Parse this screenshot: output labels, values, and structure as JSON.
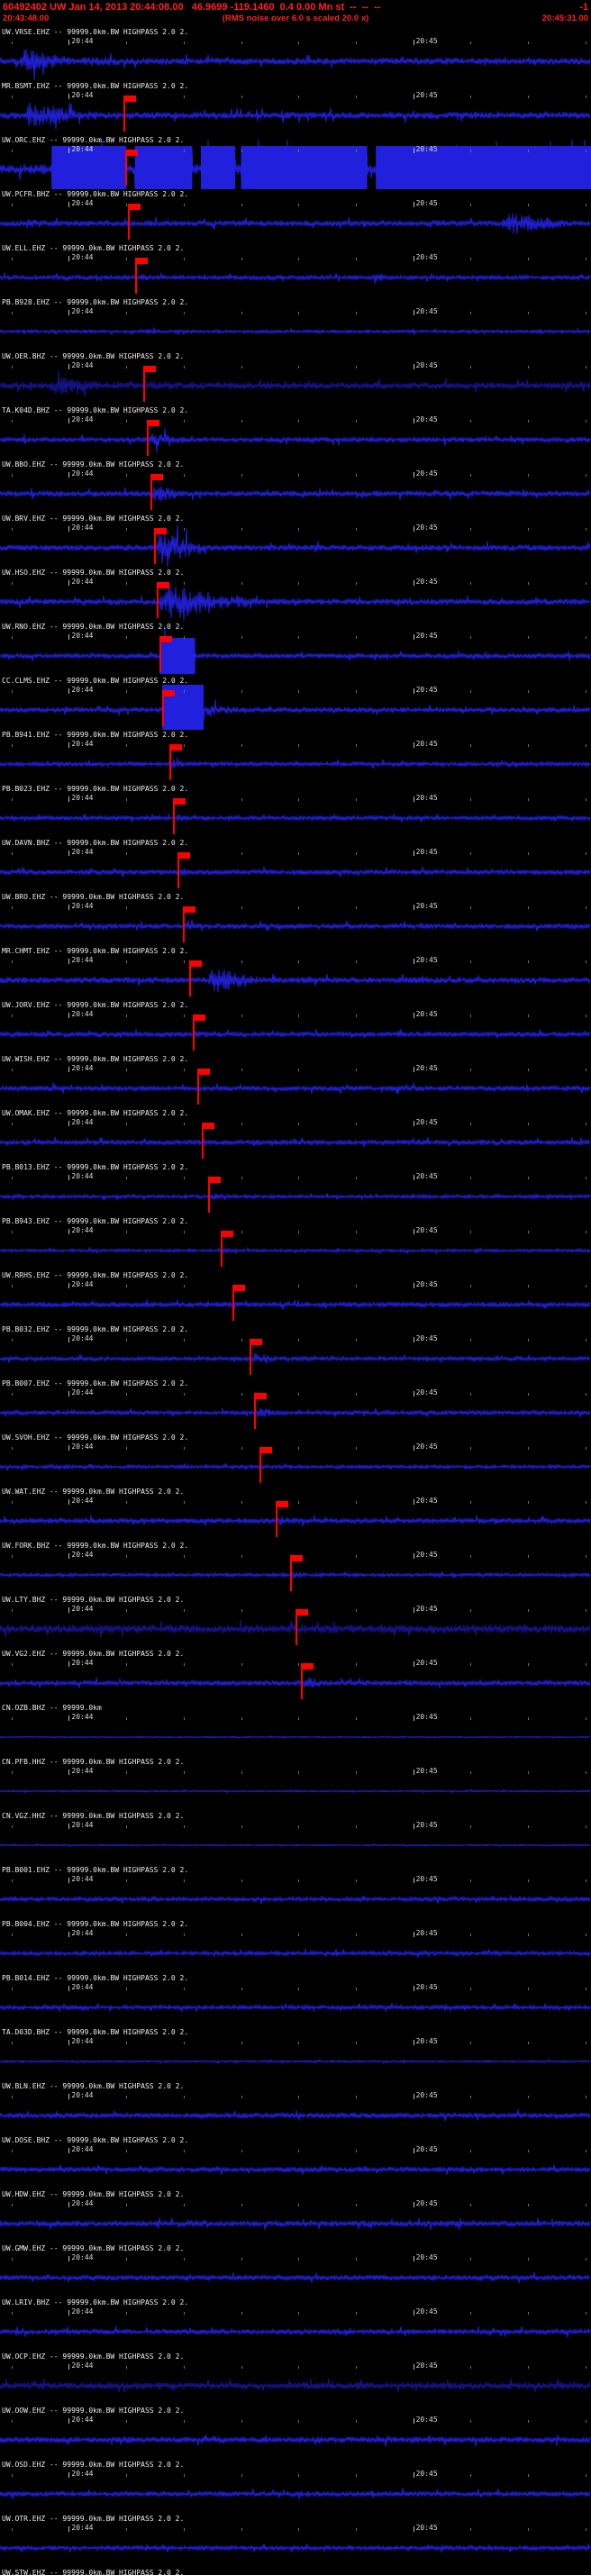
{
  "header": {
    "line1": "60492402 UW Jan 14, 2013 20:44:08.00   46.9699 -119.1460  0.4 0.00 Mn st  --  --  --",
    "line1_right": "-1",
    "start_time": "20:43:48.00",
    "rms_note": "(RMS noise over 6.0 s scaled 20.0 x)",
    "end_time": "20:45:31.00"
  },
  "timeline": {
    "window_seconds": 103,
    "minor_tick_start_s": 2,
    "minor_tick_interval_s": 10,
    "ticks": [
      {
        "s": 12,
        "label": "20:44"
      },
      {
        "s": 72,
        "label": "20:45"
      }
    ]
  },
  "colors": {
    "background": "#000000",
    "trace": "#2121dd",
    "trace_dark": "#15158f",
    "pick": "#ff0000",
    "label": "#ececec",
    "header_text": "#ff2222"
  },
  "traces": [
    {
      "label": "UW.VRSE.EHZ -- 99999.0km.BW HIGHPASS 2.0 2.",
      "base": 4,
      "bursts": [
        {
          "s0": 3,
          "s1": 13,
          "amp": 14
        },
        {
          "s0": 13,
          "s1": 30,
          "amp": 6
        }
      ],
      "blocks": [],
      "pick_s": null,
      "dark": false
    },
    {
      "label": "MR.BSMT.EHZ -- 99999.0km.BW HIGHPASS 2.0 2.",
      "base": 4,
      "bursts": [
        {
          "s0": 4,
          "s1": 14,
          "amp": 16
        },
        {
          "s0": 14,
          "s1": 24,
          "amp": 6
        }
      ],
      "blocks": [],
      "pick_s": 21.5,
      "dark": false
    },
    {
      "label": "UW.ORC.EHZ -- 99999.0km.BW HIGHPASS 2.0 2.",
      "base": 6,
      "bursts": [],
      "blocks": [
        {
          "s0": 9,
          "s1": 22,
          "half": 26
        },
        {
          "s0": 23.5,
          "s1": 33.5,
          "half": 26
        },
        {
          "s0": 35,
          "s1": 41,
          "half": 26
        },
        {
          "s0": 42,
          "s1": 64,
          "half": 26
        },
        {
          "s0": 65.5,
          "s1": 103,
          "half": 26
        }
      ],
      "pick_s": 21.8,
      "dark": false
    },
    {
      "label": "UW.PCFR.BHZ -- 99999.0km.BW HIGHPASS 2.0 2.",
      "base": 3.5,
      "bursts": [
        {
          "s0": 4,
          "s1": 9,
          "amp": 7
        },
        {
          "s0": 74,
          "s1": 80,
          "amp": 5
        },
        {
          "s0": 87,
          "s1": 99,
          "amp": 13
        }
      ],
      "blocks": [],
      "pick_s": 22.3,
      "dark": false
    },
    {
      "label": "UW.ELL.EHZ -- 99999.0km.BW HIGHPASS 2.0 2.",
      "base": 2.5,
      "bursts": [
        {
          "s0": 23.5,
          "s1": 30,
          "amp": 4
        },
        {
          "s0": 65,
          "s1": 67,
          "amp": 9
        }
      ],
      "blocks": [],
      "pick_s": 23.5,
      "dark": false
    },
    {
      "label": "PB.B928.EHZ -- 99999.0km.BW HIGHPASS 2.0 2.",
      "base": 1.8,
      "bursts": [
        {
          "s0": 25,
          "s1": 31,
          "amp": 3
        }
      ],
      "blocks": [],
      "pick_s": null,
      "dark": false
    },
    {
      "label": "UW.OER.BHZ -- 99999.0km.BW HIGHPASS 2.0 2.",
      "base": 4,
      "bursts": [
        {
          "s0": 8,
          "s1": 20,
          "amp": 11
        },
        {
          "s0": 25,
          "s1": 36,
          "amp": 6
        }
      ],
      "blocks": [],
      "pick_s": 25.0,
      "dark": true
    },
    {
      "label": "TA.K04D.BHZ -- 99999.0km.BW HIGHPASS 2.0 2.",
      "base": 3,
      "bursts": [
        {
          "s0": 25.6,
          "s1": 34,
          "amp": 8
        }
      ],
      "blocks": [],
      "pick_s": 25.6,
      "dark": false
    },
    {
      "label": "UW.BBO.EHZ -- 99999.0km.BW HIGHPASS 2.0 2.",
      "base": 3.5,
      "bursts": [
        {
          "s0": 26.2,
          "s1": 33,
          "amp": 10
        }
      ],
      "blocks": [],
      "pick_s": 26.2,
      "dark": false
    },
    {
      "label": "UW.BRV.EHZ -- 99999.0km.BW HIGHPASS 2.0 2.",
      "base": 3.5,
      "bursts": [
        {
          "s0": 26.8,
          "s1": 36,
          "amp": 18
        }
      ],
      "blocks": [],
      "pick_s": 26.8,
      "dark": false
    },
    {
      "label": "UW.HSO.EHZ -- 99999.0km.BW HIGHPASS 2.0 2.",
      "base": 3.5,
      "bursts": [
        {
          "s0": 27.3,
          "s1": 40,
          "amp": 22
        },
        {
          "s0": 40,
          "s1": 47,
          "amp": 8
        }
      ],
      "blocks": [],
      "pick_s": 27.3,
      "dark": false
    },
    {
      "label": "UW.RNO.EHZ -- 99999.0km.BW HIGHPASS 2.0 2.",
      "base": 3,
      "bursts": [],
      "blocks": [
        {
          "s0": 27.8,
          "s1": 34,
          "half": 20
        }
      ],
      "pick_s": 27.8,
      "dark": false
    },
    {
      "label": "CC.CLMS.EHZ -- 99999.0km.BW HIGHPASS 2.0 2.",
      "base": 3,
      "bursts": [
        {
          "s0": 35.5,
          "s1": 42,
          "amp": 8
        }
      ],
      "blocks": [
        {
          "s0": 28.3,
          "s1": 35.5,
          "half": 28
        }
      ],
      "pick_s": 28.3,
      "dark": false
    },
    {
      "label": "PB.B941.EHZ -- 99999.0km.BW HIGHPASS 2.0 2.",
      "base": 2.5,
      "bursts": [
        {
          "s0": 29.5,
          "s1": 33,
          "amp": 6
        }
      ],
      "blocks": [],
      "pick_s": 29.5,
      "dark": false
    },
    {
      "label": "PB.B023.EHZ -- 99999.0km.BW HIGHPASS 2.0 2.",
      "base": 2.5,
      "bursts": [
        {
          "s0": 30.2,
          "s1": 34,
          "amp": 5
        }
      ],
      "blocks": [],
      "pick_s": 30.2,
      "dark": false
    },
    {
      "label": "UW.DAVN.BHZ -- 99999.0km.BW HIGHPASS 2.0 2.",
      "base": 3,
      "bursts": [
        {
          "s0": 31,
          "s1": 35,
          "amp": 5
        }
      ],
      "blocks": [],
      "pick_s": 31.0,
      "dark": false
    },
    {
      "label": "UW.BRO.EHZ -- 99999.0km.BW HIGHPASS 2.0 2.",
      "base": 3,
      "bursts": [
        {
          "s0": 31.8,
          "s1": 36,
          "amp": 6
        }
      ],
      "blocks": [],
      "pick_s": 31.8,
      "dark": false
    },
    {
      "label": "MR.CHMT.EHZ -- 99999.0km.BW HIGHPASS 2.0 2.",
      "base": 3.5,
      "bursts": [
        {
          "s0": 36,
          "s1": 45,
          "amp": 15
        }
      ],
      "blocks": [],
      "pick_s": 33.0,
      "dark": false
    },
    {
      "label": "UW.JORV.EHZ -- 99999.0km.BW HIGHPASS 2.0 2.",
      "base": 3,
      "bursts": [
        {
          "s0": 33.6,
          "s1": 38,
          "amp": 5
        }
      ],
      "blocks": [],
      "pick_s": 33.6,
      "dark": false
    },
    {
      "label": "UW.WISH.EHZ -- 99999.0km.BW HIGHPASS 2.0 2.",
      "base": 3,
      "bursts": [
        {
          "s0": 34.3,
          "s1": 38,
          "amp": 4
        }
      ],
      "blocks": [],
      "pick_s": 34.3,
      "dark": false
    },
    {
      "label": "UW.OMAK.EHZ -- 99999.0km.BW HIGHPASS 2.0 2.",
      "base": 3,
      "bursts": [
        {
          "s0": 35.2,
          "s1": 39,
          "amp": 5
        }
      ],
      "blocks": [],
      "pick_s": 35.2,
      "dark": false
    },
    {
      "label": "PB.B013.EHZ -- 99999.0km.BW HIGHPASS 2.0 2.",
      "base": 2,
      "bursts": [
        {
          "s0": 36.2,
          "s1": 40,
          "amp": 4
        }
      ],
      "blocks": [],
      "pick_s": 36.2,
      "dark": false
    },
    {
      "label": "PB.B943.EHZ -- 99999.0km.BW HIGHPASS 2.0 2.",
      "base": 1.6,
      "bursts": [
        {
          "s0": 38.5,
          "s1": 41,
          "amp": 3
        }
      ],
      "blocks": [],
      "pick_s": 38.5,
      "dark": false
    },
    {
      "label": "UW.RRHS.EHZ -- 99999.0km.BW HIGHPASS 2.0 2.",
      "base": 3,
      "bursts": [
        {
          "s0": 40.5,
          "s1": 44,
          "amp": 4
        }
      ],
      "blocks": [],
      "pick_s": 40.5,
      "dark": false
    },
    {
      "label": "PB.B032.EHZ -- 99999.0km.BW HIGHPASS 2.0 2.",
      "base": 2.5,
      "bursts": [
        {
          "s0": 43.5,
          "s1": 49,
          "amp": 7
        }
      ],
      "blocks": [],
      "pick_s": 43.5,
      "dark": false
    },
    {
      "label": "PB.B007.EHZ -- 99999.0km.BW HIGHPASS 2.0 2.",
      "base": 2.5,
      "bursts": [
        {
          "s0": 44.3,
          "s1": 50,
          "amp": 6
        }
      ],
      "blocks": [],
      "pick_s": 44.3,
      "dark": false
    },
    {
      "label": "UW.SVOH.EHZ -- 99999.0km.BW HIGHPASS 2.0 2.",
      "base": 2,
      "bursts": [
        {
          "s0": 45.2,
          "s1": 48,
          "amp": 3
        }
      ],
      "blocks": [],
      "pick_s": 45.2,
      "dark": false
    },
    {
      "label": "UW.WAT.EHZ -- 99999.0km.BW HIGHPASS 2.0 2.",
      "base": 3,
      "bursts": [
        {
          "s0": 48,
          "s1": 53,
          "amp": 6
        }
      ],
      "blocks": [],
      "pick_s": 48.0,
      "dark": false
    },
    {
      "label": "UW.FORK.BHZ -- 99999.0km.BW HIGHPASS 2.0 2.",
      "base": 2,
      "bursts": [
        {
          "s0": 50.5,
          "s1": 54,
          "amp": 5
        }
      ],
      "blocks": [],
      "pick_s": 50.5,
      "dark": false
    },
    {
      "label": "UW.LTY.BHZ -- 99999.0km.BW HIGHPASS 2.0 2.",
      "base": 5,
      "bursts": [
        {
          "s0": 51.5,
          "s1": 56,
          "amp": 7
        }
      ],
      "blocks": [],
      "pick_s": 51.5,
      "dark": true
    },
    {
      "label": "UW.VG2.EHZ -- 99999.0km.BW HIGHPASS 2.0 2.",
      "base": 3,
      "bursts": [
        {
          "s0": 52.5,
          "s1": 58,
          "amp": 7
        }
      ],
      "blocks": [],
      "pick_s": 52.5,
      "dark": false
    },
    {
      "label": "CN.OZB.BHZ -- 99999.0km",
      "base": 0.6,
      "bursts": [],
      "blocks": [],
      "pick_s": null,
      "dark": false
    },
    {
      "label": "CN.PFB.HHZ -- 99999.0km.BW HIGHPASS 2.0 2.",
      "base": 0.8,
      "bursts": [],
      "blocks": [],
      "pick_s": null,
      "dark": false
    },
    {
      "label": "CN.VGZ.HHZ -- 99999.0km.BW HIGHPASS 2.0 2.",
      "base": 0.8,
      "bursts": [],
      "blocks": [],
      "pick_s": null,
      "dark": false
    },
    {
      "label": "PB.B001.EHZ -- 99999.0km.BW HIGHPASS 2.0 2.",
      "base": 2.4,
      "bursts": [],
      "blocks": [],
      "pick_s": null,
      "dark": false
    },
    {
      "label": "PB.B004.EHZ -- 99999.0km.BW HIGHPASS 2.0 2.",
      "base": 2.4,
      "bursts": [],
      "blocks": [],
      "pick_s": null,
      "dark": false
    },
    {
      "label": "PB.B014.EHZ -- 99999.0km.BW HIGHPASS 2.0 2.",
      "base": 2.4,
      "bursts": [],
      "blocks": [],
      "pick_s": null,
      "dark": false
    },
    {
      "label": "TA.D03D.BHZ -- 99999.0km.BW HIGHPASS 2.0 2.",
      "base": 1,
      "bursts": [],
      "blocks": [],
      "pick_s": null,
      "dark": false
    },
    {
      "label": "UW.BLN.EHZ -- 99999.0km.BW HIGHPASS 2.0 2.",
      "base": 3,
      "bursts": [],
      "blocks": [],
      "pick_s": null,
      "dark": false
    },
    {
      "label": "UW.DOSE.BHZ -- 99999.0km.BW HIGHPASS 2.0 2.",
      "base": 3,
      "bursts": [],
      "blocks": [],
      "pick_s": null,
      "dark": false
    },
    {
      "label": "UW.HDW.EHZ -- 99999.0km.BW HIGHPASS 2.0 2.",
      "base": 3.5,
      "bursts": [
        {
          "s0": 30,
          "s1": 40,
          "amp": 5
        }
      ],
      "blocks": [],
      "pick_s": null,
      "dark": false
    },
    {
      "label": "UW.GMW.EHZ -- 99999.0km.BW HIGHPASS 2.0 2.",
      "base": 3,
      "bursts": [],
      "blocks": [],
      "pick_s": null,
      "dark": false
    },
    {
      "label": "UW.LRIV.BHZ -- 99999.0km.BW HIGHPASS 2.0 2.",
      "base": 3,
      "bursts": [],
      "blocks": [],
      "pick_s": null,
      "dark": false
    },
    {
      "label": "UW.OCP.EHZ -- 99999.0km.BW HIGHPASS 2.0 2.",
      "base": 4,
      "bursts": [],
      "blocks": [],
      "pick_s": null,
      "dark": true
    },
    {
      "label": "UW.OOW.EHZ -- 99999.0km.BW HIGHPASS 2.0 2.",
      "base": 3.5,
      "bursts": [
        {
          "s0": 20,
          "s1": 26,
          "amp": 6
        },
        {
          "s0": 55,
          "s1": 60,
          "amp": 5
        }
      ],
      "blocks": [],
      "pick_s": null,
      "dark": false
    },
    {
      "label": "UW.OSD.EHZ -- 99999.0km.BW HIGHPASS 2.0 2.",
      "base": 3,
      "bursts": [],
      "blocks": [],
      "pick_s": null,
      "dark": false
    },
    {
      "label": "UW.OTR.EHZ -- 99999.0km.BW HIGHPASS 2.0 2.",
      "base": 2.5,
      "bursts": [],
      "blocks": [],
      "pick_s": null,
      "dark": false
    },
    {
      "label": "UW.STW.EHZ -- 99999.0km.BW HIGHPASS 2.0 2.",
      "base": 3,
      "bursts": [],
      "blocks": [],
      "pick_s": null,
      "dark": false
    }
  ]
}
